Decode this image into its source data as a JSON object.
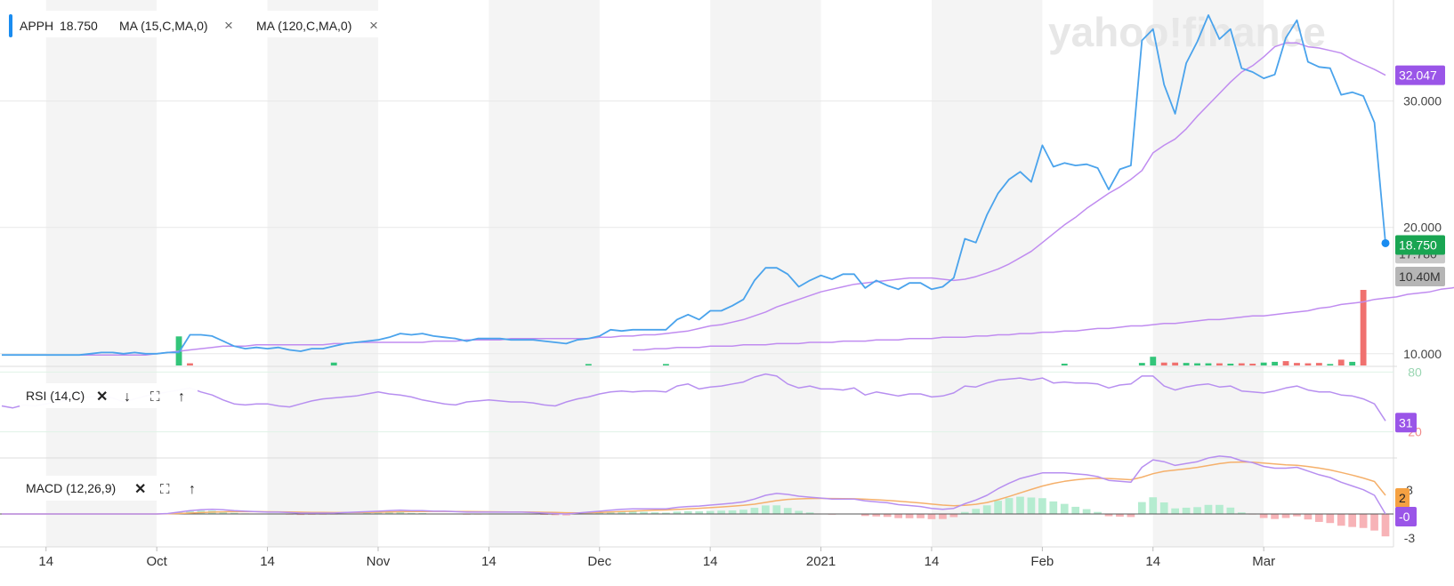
{
  "watermark": "yahoo!finance",
  "colors": {
    "price": "#4aa3ec",
    "ma": "#c08cf0",
    "rsi": "#b78ff0",
    "macd": "#b78ff0",
    "signal": "#f5b06b",
    "volUp": "#33c57a",
    "volDown": "#f0716f",
    "histUp": "#b5ecd0",
    "histDown": "#f7b3b7",
    "badgeMA": "#9a55e8",
    "badgePrice": "#19a552",
    "badgeVol": "#b5b5b5",
    "badgeSignal": "#f5a142",
    "stripe": "#f4f4f4"
  },
  "legend": {
    "ticker": "APPH",
    "price": "18.750",
    "ma1": "MA (15,C,MA,0)",
    "ma2": "MA (120,C,MA,0)",
    "close": "×"
  },
  "rsi_legend": {
    "label": "RSI (14,C)",
    "close": "✕",
    "down": "↓",
    "expand": "⛶",
    "up": "↑"
  },
  "macd_legend": {
    "label": "MACD (12,26,9)",
    "close": "✕",
    "expand": "⛶",
    "up": "↑"
  },
  "badges": {
    "ma15": "32.047",
    "price": "18.750",
    "ma120": "17.780",
    "volume": "10.40M",
    "rsi": "31",
    "macd_signal": "2",
    "macd": "-0"
  },
  "chart_data": {
    "type": "line",
    "x_tick_labels": [
      "14",
      "Oct",
      "14",
      "Nov",
      "14",
      "Dec",
      "14",
      "2021",
      "14",
      "Feb",
      "14",
      "Mar"
    ],
    "price_axis": {
      "ticks": [
        "10.000",
        "20.000",
        "30.000"
      ],
      "range": [
        9.0,
        38.0
      ]
    },
    "series": [
      {
        "name": "APPH",
        "values": [
          9.9,
          9.9,
          9.9,
          9.9,
          9.9,
          9.9,
          9.9,
          9.9,
          10.0,
          10.1,
          10.1,
          10.0,
          10.1,
          10.0,
          10.0,
          10.1,
          10.1,
          11.5,
          11.5,
          11.4,
          11.0,
          10.6,
          10.4,
          10.5,
          10.4,
          10.5,
          10.3,
          10.2,
          10.4,
          10.4,
          10.6,
          10.8,
          10.9,
          11.0,
          11.1,
          11.3,
          11.6,
          11.5,
          11.6,
          11.4,
          11.3,
          11.2,
          11.0,
          11.2,
          11.2,
          11.2,
          11.1,
          11.1,
          11.1,
          11.0,
          10.9,
          10.8,
          11.1,
          11.2,
          11.4,
          11.9,
          11.8,
          11.9,
          11.9,
          11.9,
          11.9,
          12.7,
          13.1,
          12.7,
          13.4,
          13.4,
          13.8,
          14.3,
          15.8,
          16.8,
          16.8,
          16.3,
          15.3,
          15.8,
          16.2,
          15.9,
          16.3,
          16.3,
          15.2,
          15.8,
          15.4,
          15.1,
          15.6,
          15.6,
          15.1,
          15.3,
          16.0,
          19.1,
          18.8,
          21.0,
          22.7,
          23.8,
          24.4,
          23.6,
          26.5,
          24.8,
          25.1,
          24.9,
          25.0,
          24.7,
          23.0,
          24.6,
          24.9,
          34.8,
          35.7,
          31.3,
          29.0,
          33.0,
          34.7,
          36.8,
          34.9,
          35.7,
          32.6,
          32.3,
          31.8,
          32.1,
          35.0,
          36.4,
          33.1,
          32.7,
          32.6,
          30.5,
          30.7,
          30.4,
          28.3,
          18.75
        ]
      },
      {
        "name": "MA (15,C,MA,0)",
        "values": [
          9.9,
          9.9,
          9.9,
          9.9,
          9.9,
          9.9,
          9.9,
          9.9,
          9.9,
          9.9,
          9.9,
          9.9,
          9.9,
          9.9,
          10.0,
          10.1,
          10.2,
          10.3,
          10.4,
          10.5,
          10.6,
          10.6,
          10.6,
          10.7,
          10.7,
          10.7,
          10.7,
          10.7,
          10.7,
          10.7,
          10.8,
          10.8,
          10.9,
          10.9,
          10.9,
          10.9,
          10.9,
          10.9,
          10.9,
          11.0,
          11.0,
          11.0,
          11.1,
          11.1,
          11.1,
          11.1,
          11.2,
          11.2,
          11.2,
          11.2,
          11.2,
          11.2,
          11.2,
          11.2,
          11.3,
          11.3,
          11.4,
          11.4,
          11.5,
          11.5,
          11.6,
          11.7,
          11.8,
          12.0,
          12.2,
          12.3,
          12.5,
          12.7,
          13.0,
          13.3,
          13.7,
          14.0,
          14.3,
          14.6,
          14.9,
          15.1,
          15.3,
          15.5,
          15.6,
          15.7,
          15.8,
          15.9,
          16.0,
          16.0,
          16.0,
          15.9,
          15.8,
          15.9,
          16.1,
          16.4,
          16.7,
          17.1,
          17.6,
          18.1,
          18.8,
          19.5,
          20.2,
          20.8,
          21.5,
          22.1,
          22.7,
          23.2,
          23.8,
          24.5,
          25.9,
          26.5,
          27.0,
          27.8,
          28.8,
          29.7,
          30.6,
          31.5,
          32.3,
          32.8,
          33.5,
          34.3,
          34.6,
          34.6,
          34.3,
          34.2,
          34.0,
          33.8,
          33.3,
          32.9,
          32.5,
          32.047
        ]
      },
      {
        "name": "MA (120,C,MA,0)",
        "start_index": 57,
        "values": [
          10.3,
          10.3,
          10.4,
          10.4,
          10.5,
          10.5,
          10.5,
          10.6,
          10.6,
          10.6,
          10.7,
          10.7,
          10.7,
          10.8,
          10.8,
          10.8,
          10.9,
          10.9,
          10.9,
          11.0,
          11.0,
          11.0,
          11.1,
          11.1,
          11.1,
          11.2,
          11.2,
          11.2,
          11.3,
          11.3,
          11.3,
          11.4,
          11.4,
          11.5,
          11.5,
          11.6,
          11.6,
          11.7,
          11.7,
          11.8,
          11.8,
          11.9,
          12.0,
          12.0,
          12.1,
          12.2,
          12.2,
          12.3,
          12.4,
          12.4,
          12.5,
          12.6,
          12.7,
          12.7,
          12.8,
          12.9,
          13.0,
          13.0,
          13.1,
          13.2,
          13.3,
          13.4,
          13.6,
          13.7,
          13.9,
          14.0,
          14.1,
          14.3,
          14.4,
          14.5,
          14.7,
          14.8,
          14.9,
          15.1,
          15.2,
          15.4,
          15.5,
          15.7,
          15.8,
          16.0,
          16.2,
          16.3,
          16.5,
          16.6,
          16.8,
          17.0,
          17.2,
          17.3,
          17.5,
          17.6,
          17.78
        ]
      }
    ],
    "volume_bars": [
      {
        "i": 16,
        "v": 4.0,
        "dir": "up"
      },
      {
        "i": 17,
        "v": 0.3,
        "dir": "down"
      },
      {
        "i": 30,
        "v": 0.4,
        "dir": "up"
      },
      {
        "i": 53,
        "v": 0.2,
        "dir": "up"
      },
      {
        "i": 60,
        "v": 0.2,
        "dir": "up"
      },
      {
        "i": 96,
        "v": 0.25,
        "dir": "up"
      },
      {
        "i": 103,
        "v": 0.35,
        "dir": "up"
      },
      {
        "i": 104,
        "v": 1.2,
        "dir": "up"
      },
      {
        "i": 105,
        "v": 0.4,
        "dir": "down"
      },
      {
        "i": 106,
        "v": 0.4,
        "dir": "down"
      },
      {
        "i": 107,
        "v": 0.35,
        "dir": "up"
      },
      {
        "i": 108,
        "v": 0.3,
        "dir": "up"
      },
      {
        "i": 109,
        "v": 0.3,
        "dir": "up"
      },
      {
        "i": 110,
        "v": 0.3,
        "dir": "down"
      },
      {
        "i": 111,
        "v": 0.25,
        "dir": "up"
      },
      {
        "i": 112,
        "v": 0.3,
        "dir": "down"
      },
      {
        "i": 113,
        "v": 0.25,
        "dir": "down"
      },
      {
        "i": 114,
        "v": 0.4,
        "dir": "up"
      },
      {
        "i": 115,
        "v": 0.5,
        "dir": "up"
      },
      {
        "i": 116,
        "v": 0.6,
        "dir": "down"
      },
      {
        "i": 117,
        "v": 0.35,
        "dir": "down"
      },
      {
        "i": 118,
        "v": 0.3,
        "dir": "down"
      },
      {
        "i": 119,
        "v": 0.35,
        "dir": "down"
      },
      {
        "i": 120,
        "v": 0.2,
        "dir": "up"
      },
      {
        "i": 121,
        "v": 0.8,
        "dir": "down"
      },
      {
        "i": 122,
        "v": 0.5,
        "dir": "up"
      },
      {
        "i": 123,
        "v": 10.4,
        "dir": "down"
      }
    ],
    "rsi": {
      "axis_ticks": [
        "80",
        "20"
      ],
      "values": [
        46,
        44,
        47,
        46,
        48,
        50,
        52,
        54,
        55,
        56,
        54,
        50,
        53,
        56,
        58,
        60,
        62,
        64,
        60,
        57,
        52,
        48,
        47,
        48,
        48,
        46,
        45,
        48,
        51,
        53,
        54,
        55,
        56,
        58,
        60,
        58,
        57,
        55,
        52,
        50,
        48,
        47,
        50,
        51,
        52,
        51,
        50,
        50,
        49,
        47,
        46,
        50,
        53,
        55,
        58,
        60,
        61,
        60,
        61,
        61,
        60,
        66,
        68,
        63,
        65,
        66,
        68,
        70,
        75,
        78,
        76,
        68,
        64,
        66,
        63,
        63,
        62,
        64,
        57,
        60,
        58,
        56,
        58,
        58,
        55,
        56,
        59,
        66,
        65,
        69,
        72,
        73,
        74,
        72,
        74,
        69,
        70,
        69,
        69,
        68,
        64,
        67,
        68,
        76,
        76,
        66,
        62,
        65,
        67,
        68,
        65,
        66,
        61,
        60,
        59,
        61,
        64,
        66,
        62,
        60,
        60,
        57,
        56,
        53,
        48,
        31
      ]
    },
    "macd": {
      "axis_ticks": [
        "3",
        "-3"
      ],
      "macd": [
        0,
        0,
        0,
        0,
        0,
        0,
        0,
        0,
        0,
        0,
        0,
        0,
        0,
        0,
        0,
        0.05,
        0.2,
        0.35,
        0.45,
        0.5,
        0.45,
        0.35,
        0.3,
        0.25,
        0.2,
        0.2,
        0.15,
        0.1,
        0.1,
        0.1,
        0.1,
        0.15,
        0.2,
        0.25,
        0.3,
        0.35,
        0.4,
        0.35,
        0.35,
        0.3,
        0.3,
        0.25,
        0.2,
        0.2,
        0.2,
        0.2,
        0.2,
        0.2,
        0.15,
        0.1,
        0.05,
        0.0,
        0.1,
        0.2,
        0.3,
        0.4,
        0.5,
        0.55,
        0.55,
        0.55,
        0.55,
        0.7,
        0.8,
        0.85,
        0.95,
        1.05,
        1.15,
        1.3,
        1.6,
        2.0,
        2.2,
        2.1,
        1.9,
        1.8,
        1.7,
        1.6,
        1.6,
        1.6,
        1.4,
        1.3,
        1.2,
        1.0,
        0.9,
        0.8,
        0.6,
        0.5,
        0.6,
        1.1,
        1.5,
        2.0,
        2.7,
        3.3,
        3.8,
        4.1,
        4.4,
        4.4,
        4.4,
        4.3,
        4.2,
        4.0,
        3.6,
        3.5,
        3.4,
        5.0,
        5.8,
        5.6,
        5.2,
        5.4,
        5.6,
        6.0,
        6.2,
        6.1,
        5.7,
        5.5,
        5.1,
        4.9,
        4.9,
        5.0,
        4.6,
        4.2,
        3.9,
        3.4,
        3.0,
        2.6,
        2.0,
        -0.0
      ],
      "signal": [
        0,
        0,
        0,
        0,
        0,
        0,
        0,
        0,
        0,
        0,
        0,
        0,
        0,
        0,
        0,
        0.02,
        0.05,
        0.1,
        0.15,
        0.2,
        0.23,
        0.25,
        0.25,
        0.25,
        0.24,
        0.23,
        0.21,
        0.19,
        0.17,
        0.16,
        0.15,
        0.15,
        0.16,
        0.17,
        0.19,
        0.21,
        0.24,
        0.26,
        0.27,
        0.28,
        0.28,
        0.27,
        0.26,
        0.25,
        0.24,
        0.23,
        0.22,
        0.21,
        0.2,
        0.18,
        0.16,
        0.13,
        0.12,
        0.14,
        0.17,
        0.21,
        0.26,
        0.31,
        0.36,
        0.4,
        0.43,
        0.49,
        0.55,
        0.61,
        0.68,
        0.75,
        0.83,
        0.92,
        1.05,
        1.24,
        1.43,
        1.56,
        1.62,
        1.66,
        1.67,
        1.66,
        1.64,
        1.63,
        1.58,
        1.52,
        1.46,
        1.37,
        1.28,
        1.18,
        1.06,
        0.95,
        0.88,
        0.92,
        1.04,
        1.23,
        1.52,
        1.88,
        2.26,
        2.63,
        2.99,
        3.28,
        3.5,
        3.66,
        3.77,
        3.82,
        3.8,
        3.74,
        3.67,
        3.94,
        4.31,
        4.57,
        4.7,
        4.84,
        4.99,
        5.19,
        5.39,
        5.53,
        5.56,
        5.55,
        5.46,
        5.35,
        5.26,
        5.21,
        5.09,
        4.91,
        4.71,
        4.45,
        4.16,
        3.85,
        3.48,
        2.0
      ]
    }
  }
}
